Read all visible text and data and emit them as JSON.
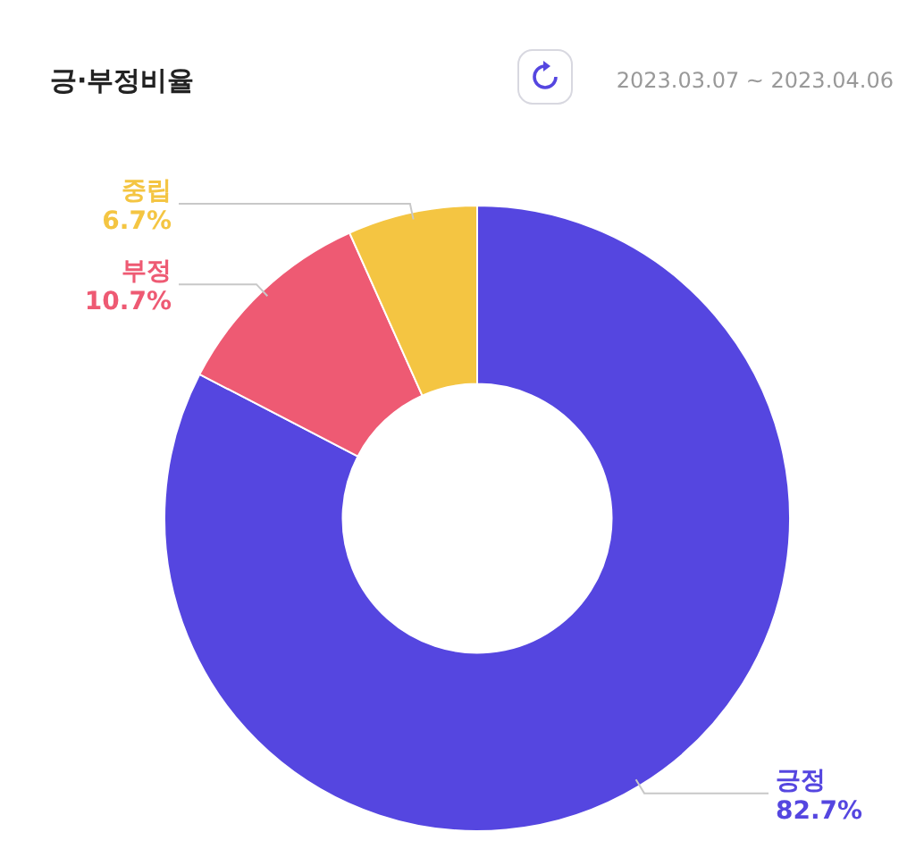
{
  "chart_data": {
    "type": "donut",
    "title": "긍·부정비율",
    "subtitle": "2023.03.07 ~ 2023.04.06",
    "categories": [
      "긍정",
      "부정",
      "중립"
    ],
    "values": [
      82.7,
      10.7,
      6.7
    ],
    "colors": [
      "#5546e0",
      "#ee5a73",
      "#f4c542"
    ],
    "value_labels": [
      "82.7%",
      "10.7%",
      "6.7%"
    ]
  }
}
